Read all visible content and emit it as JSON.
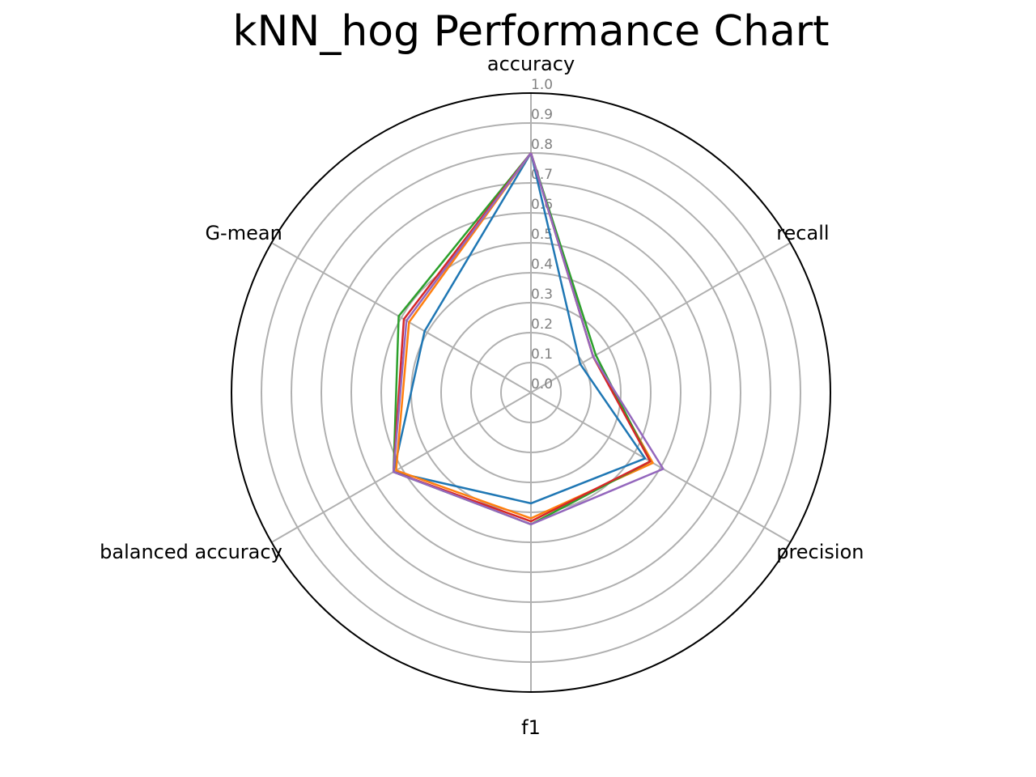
{
  "chart_data": {
    "type": "radar",
    "title": "kNN_hog Performance Chart",
    "axes": [
      "accuracy",
      "recall",
      "precision",
      "f1",
      "balanced accuracy",
      "G-mean"
    ],
    "rlim": [
      0.0,
      1.0
    ],
    "rticks": [
      "0.0",
      "0.1",
      "0.2",
      "0.3",
      "0.4",
      "0.5",
      "0.6",
      "0.7",
      "0.8",
      "0.9",
      "1.0"
    ],
    "grid": true,
    "legend": false,
    "series": [
      {
        "color": "#1f77b4",
        "values": [
          0.8,
          0.19,
          0.44,
          0.37,
          0.53,
          0.41
        ]
      },
      {
        "color": "#ff7f0e",
        "values": [
          0.8,
          0.24,
          0.47,
          0.42,
          0.52,
          0.47
        ]
      },
      {
        "color": "#2ca02c",
        "values": [
          0.8,
          0.25,
          0.46,
          0.44,
          0.53,
          0.51
        ]
      },
      {
        "color": "#d62728",
        "values": [
          0.8,
          0.24,
          0.46,
          0.43,
          0.53,
          0.49
        ]
      },
      {
        "color": "#9467bd",
        "values": [
          0.8,
          0.24,
          0.51,
          0.44,
          0.53,
          0.48
        ]
      }
    ]
  }
}
